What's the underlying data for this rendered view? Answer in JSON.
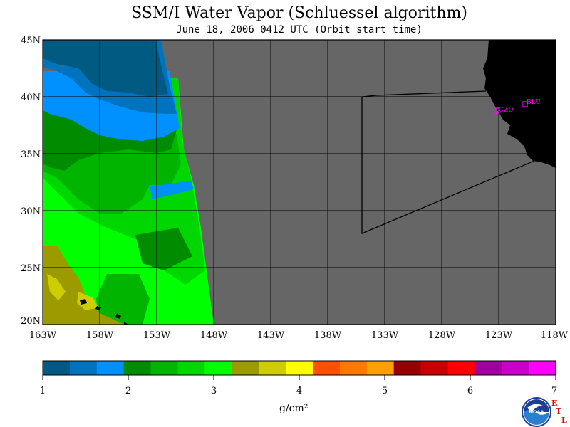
{
  "title": "SSM/I Water Vapor (Schluessel algorithm)",
  "subtitle": "June 18, 2006  0412 UTC  (Orbit start time)",
  "map": {
    "lon_range": [
      -163,
      -118
    ],
    "lat_range": [
      20,
      45
    ],
    "x_ticks": [
      "163W",
      "158W",
      "153W",
      "148W",
      "143W",
      "138W",
      "133W",
      "128W",
      "123W",
      "118W"
    ],
    "y_ticks": [
      "45N",
      "40N",
      "35N",
      "30N",
      "25N",
      "20N"
    ],
    "no_data_color": "#666666",
    "land_color": "#000000",
    "grid_color": "#000000",
    "stations": [
      {
        "code": "CZD",
        "lon": -123.0,
        "lat": 38.6,
        "color": "#ff00ff"
      },
      {
        "code": "BLU",
        "lon": -120.8,
        "lat": 39.3,
        "color": "#ff00ff"
      }
    ]
  },
  "colorbar": {
    "tick_labels": [
      "1",
      "2",
      "3",
      "4",
      "5",
      "6",
      "7"
    ],
    "unit": "g/cm²",
    "colors": [
      "#005a82",
      "#0073be",
      "#0091ff",
      "#008c00",
      "#00b400",
      "#00d700",
      "#00ff00",
      "#9b9b00",
      "#cdcd00",
      "#ffff00",
      "#ff5000",
      "#ff7800",
      "#ffa000",
      "#960000",
      "#c80000",
      "#ff0000",
      "#a000a0",
      "#c800c8",
      "#ff00ff"
    ]
  },
  "logos": {
    "noaa": "NOAA",
    "etl": [
      "E",
      "T",
      "L"
    ]
  }
}
